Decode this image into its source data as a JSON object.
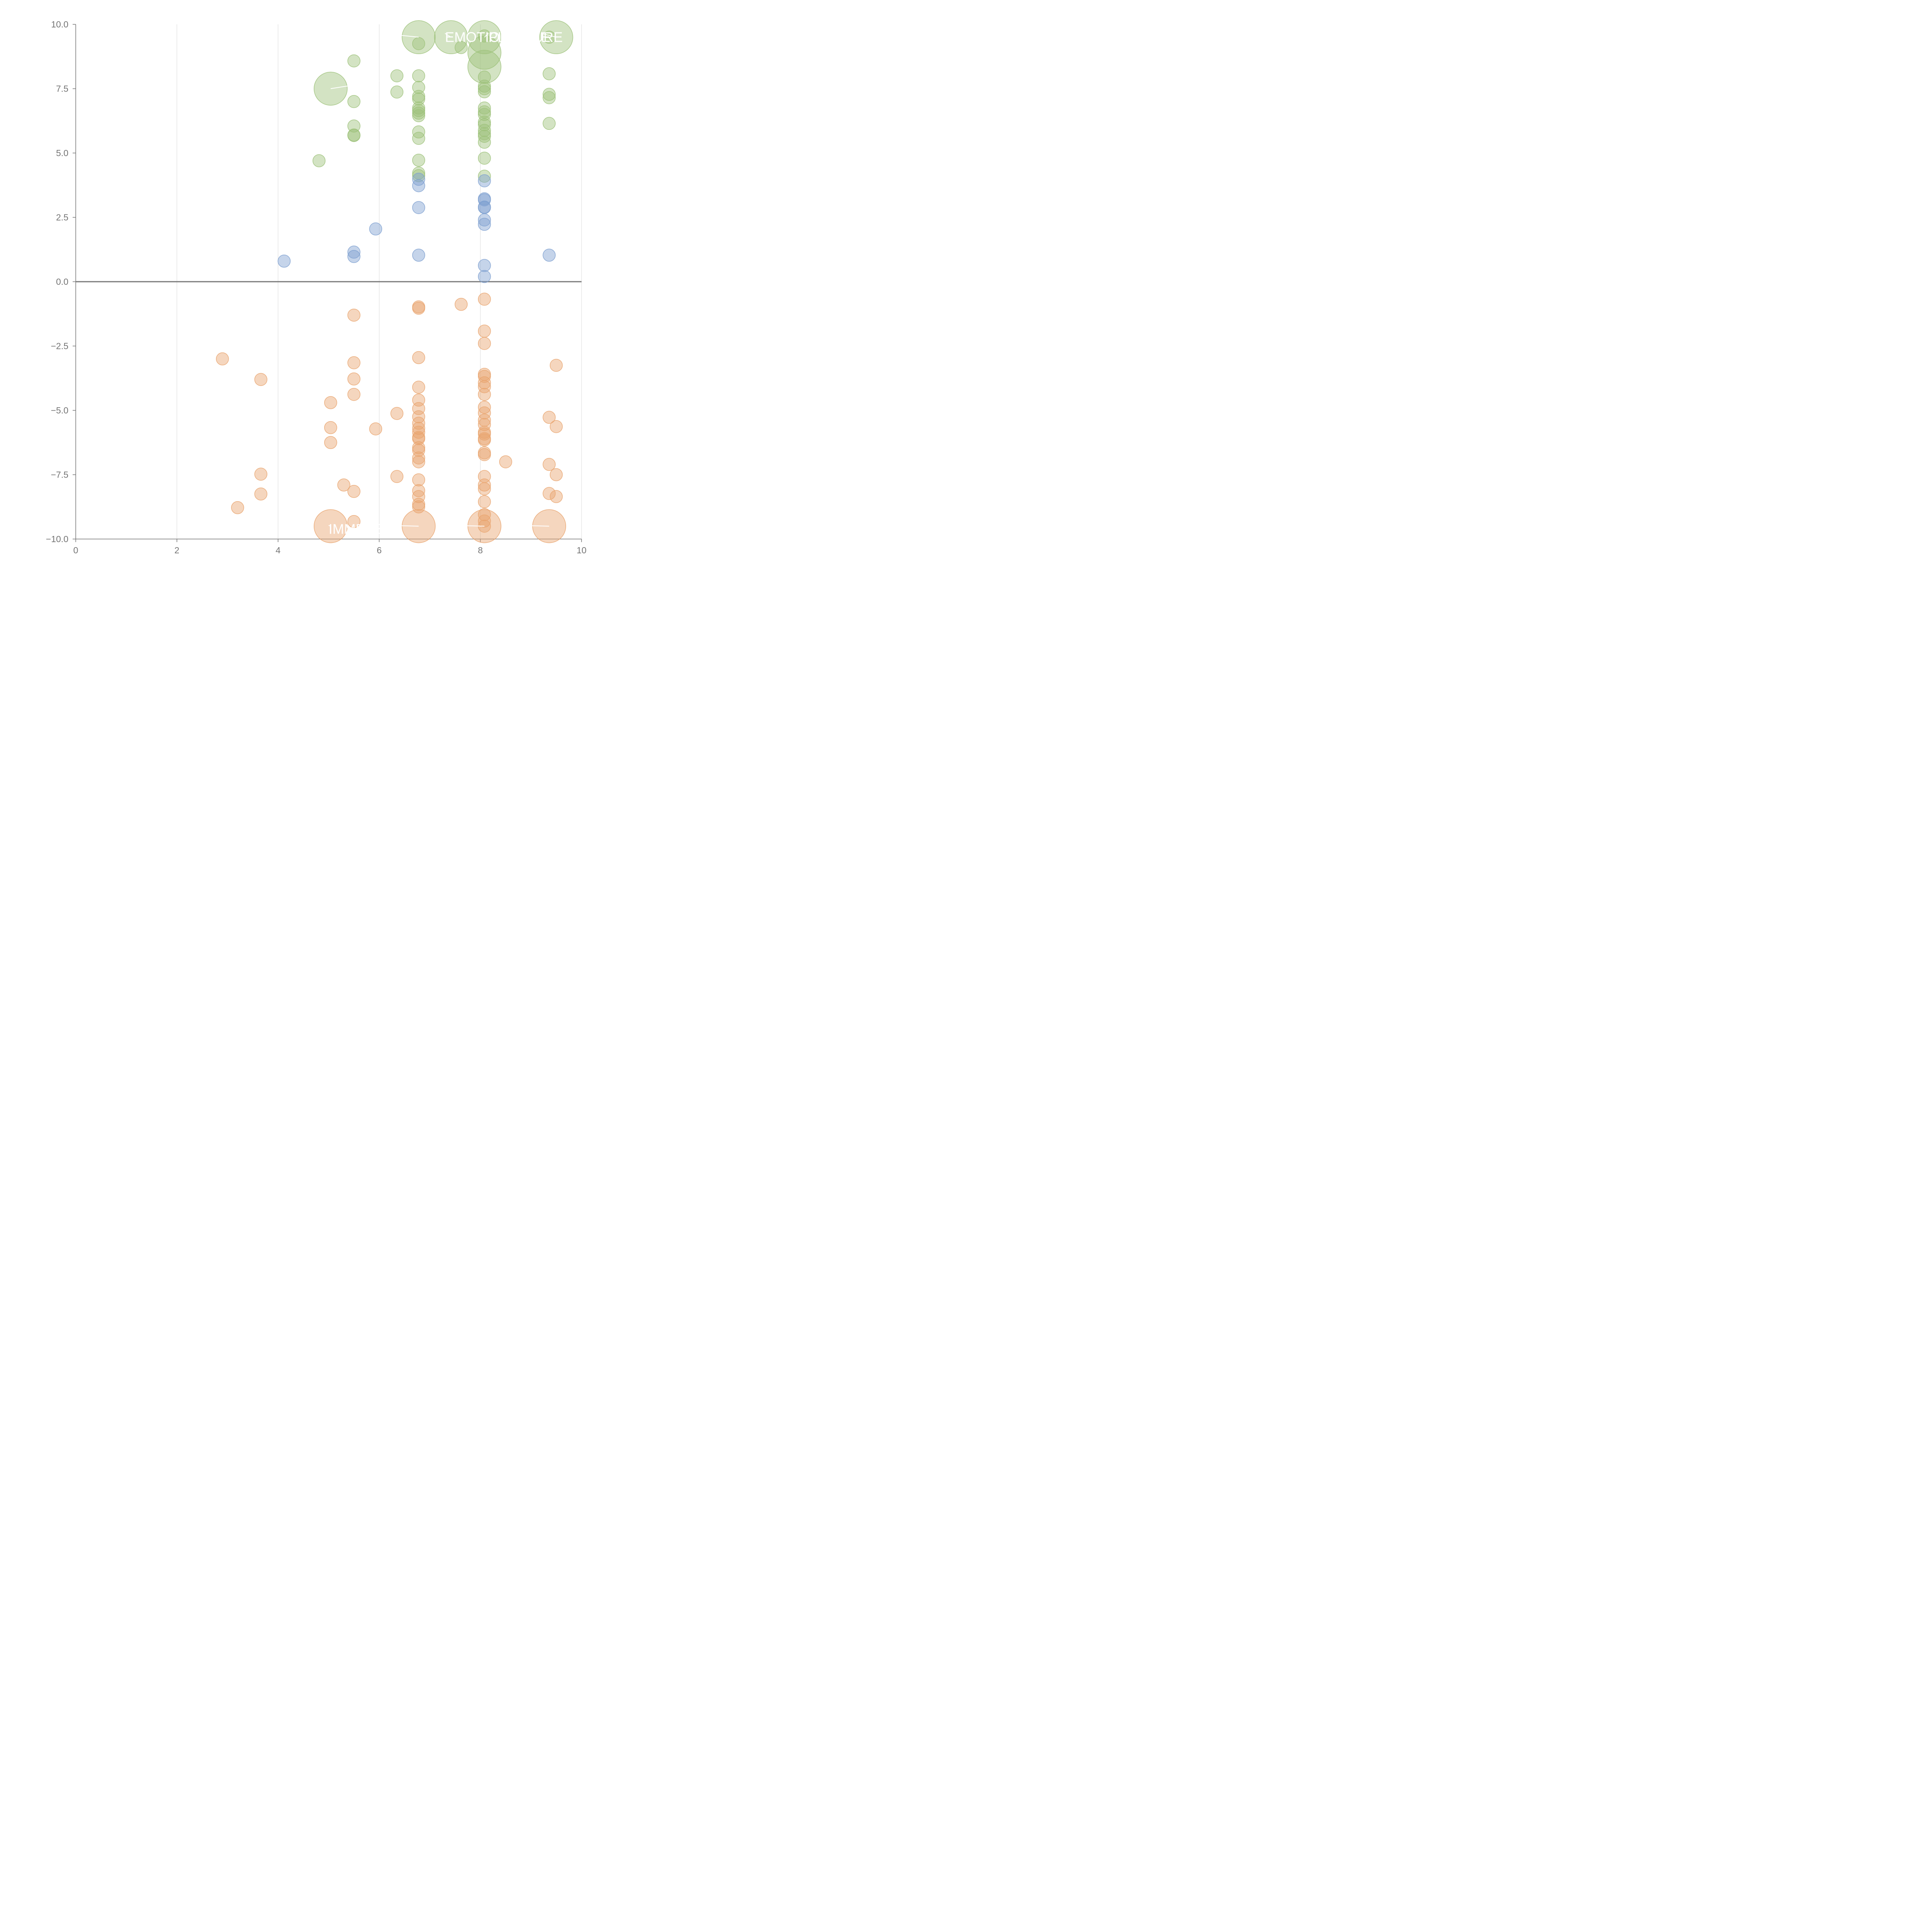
{
  "chart_data": {
    "type": "scatter",
    "title": "",
    "xlabel": "",
    "ylabel": "",
    "xlim": [
      0,
      10
    ],
    "ylim": [
      -10,
      10
    ],
    "x_ticks": [
      "0",
      "2",
      "4",
      "6",
      "8",
      "10"
    ],
    "y_ticks": [
      "−10.0",
      "−7.5",
      "−5.0",
      "−2.5",
      "0.0",
      "2.5",
      "5.0",
      "7.5",
      "10.0"
    ],
    "grid": "vertical",
    "zero_line": true,
    "colors": {
      "positive": "#9ec27a",
      "neutral": "#7ea0d0",
      "negative": "#e9a46e",
      "axis": "#757575",
      "grid": "#d9d9d9",
      "label": "#ffffff"
    },
    "series": [
      {
        "name": "positive",
        "color": "#9ec27a",
        "points": [
          [
            6.78,
            9.5,
            2
          ],
          [
            7.42,
            9.5,
            2
          ],
          [
            8.08,
            9.5,
            2
          ],
          [
            9.5,
            9.5,
            2
          ],
          [
            9.36,
            9.5,
            0
          ],
          [
            8.08,
            8.9,
            2
          ],
          [
            8.08,
            8.35,
            2
          ],
          [
            7.62,
            9.1,
            0
          ],
          [
            6.78,
            9.25,
            0
          ],
          [
            8.08,
            9.55,
            0
          ],
          [
            5.04,
            7.5,
            2
          ],
          [
            5.5,
            8.58,
            0
          ],
          [
            6.35,
            8.0,
            0
          ],
          [
            6.35,
            7.37,
            0
          ],
          [
            6.78,
            8.0,
            0
          ],
          [
            6.78,
            7.55,
            0
          ],
          [
            6.78,
            7.2,
            0
          ],
          [
            6.78,
            7.1,
            0
          ],
          [
            6.78,
            6.75,
            0
          ],
          [
            6.78,
            6.65,
            0
          ],
          [
            6.78,
            6.55,
            0
          ],
          [
            6.78,
            6.45,
            0
          ],
          [
            6.78,
            5.82,
            0
          ],
          [
            6.78,
            5.57,
            0
          ],
          [
            6.78,
            4.72,
            0
          ],
          [
            6.78,
            4.22,
            0
          ],
          [
            6.78,
            4.12,
            0
          ],
          [
            5.5,
            7.0,
            0
          ],
          [
            5.5,
            6.05,
            0
          ],
          [
            5.5,
            5.7,
            0
          ],
          [
            5.5,
            5.68,
            0
          ],
          [
            4.81,
            4.7,
            0
          ],
          [
            8.08,
            7.95,
            0
          ],
          [
            8.08,
            7.6,
            0
          ],
          [
            8.08,
            7.5,
            0
          ],
          [
            8.08,
            7.38,
            0
          ],
          [
            8.08,
            6.75,
            0
          ],
          [
            8.08,
            6.6,
            0
          ],
          [
            8.08,
            6.5,
            0
          ],
          [
            8.08,
            6.2,
            0
          ],
          [
            8.08,
            6.1,
            0
          ],
          [
            8.08,
            5.88,
            0
          ],
          [
            8.08,
            5.75,
            0
          ],
          [
            8.08,
            5.65,
            0
          ],
          [
            8.08,
            5.42,
            0
          ],
          [
            8.08,
            4.8,
            0
          ],
          [
            8.08,
            4.1,
            0
          ],
          [
            9.36,
            8.08,
            0
          ],
          [
            9.36,
            7.28,
            0
          ],
          [
            9.36,
            7.15,
            0
          ],
          [
            9.36,
            6.15,
            0
          ]
        ]
      },
      {
        "name": "neutral",
        "color": "#7ea0d0",
        "points": [
          [
            4.12,
            0.8,
            0
          ],
          [
            5.5,
            1.15,
            0
          ],
          [
            5.5,
            0.98,
            0
          ],
          [
            5.93,
            2.05,
            0
          ],
          [
            6.78,
            3.98,
            0
          ],
          [
            6.78,
            3.73,
            0
          ],
          [
            6.78,
            2.88,
            0
          ],
          [
            6.78,
            1.03,
            0
          ],
          [
            8.08,
            3.92,
            0
          ],
          [
            8.08,
            3.22,
            0
          ],
          [
            8.08,
            3.18,
            0
          ],
          [
            8.08,
            2.9,
            0
          ],
          [
            8.08,
            2.88,
            0
          ],
          [
            8.08,
            2.4,
            0
          ],
          [
            8.08,
            2.23,
            0
          ],
          [
            8.08,
            0.63,
            0
          ],
          [
            8.08,
            0.2,
            0
          ],
          [
            9.36,
            1.03,
            0
          ]
        ]
      },
      {
        "name": "negative",
        "color": "#e9a46e",
        "points": [
          [
            5.04,
            -9.5,
            2
          ],
          [
            6.78,
            -9.5,
            2
          ],
          [
            8.08,
            -9.5,
            2
          ],
          [
            9.36,
            -9.5,
            2
          ],
          [
            8.08,
            -9.5,
            0
          ],
          [
            8.08,
            -9.3,
            0
          ],
          [
            8.08,
            -9.05,
            0
          ],
          [
            2.9,
            -3.0,
            0
          ],
          [
            3.66,
            -3.8,
            0
          ],
          [
            3.66,
            -7.48,
            0
          ],
          [
            3.66,
            -8.25,
            0
          ],
          [
            3.2,
            -8.78,
            0
          ],
          [
            5.04,
            -4.7,
            0
          ],
          [
            5.04,
            -5.67,
            0
          ],
          [
            5.04,
            -6.25,
            0
          ],
          [
            5.3,
            -7.9,
            0
          ],
          [
            5.5,
            -1.3,
            0
          ],
          [
            5.5,
            -3.15,
            0
          ],
          [
            5.5,
            -3.78,
            0
          ],
          [
            5.5,
            -4.38,
            0
          ],
          [
            5.5,
            -8.15,
            0
          ],
          [
            5.5,
            -9.32,
            0
          ],
          [
            5.93,
            -5.72,
            0
          ],
          [
            6.35,
            -5.12,
            0
          ],
          [
            6.35,
            -7.57,
            0
          ],
          [
            6.78,
            -0.98,
            0
          ],
          [
            6.78,
            -1.03,
            0
          ],
          [
            6.78,
            -2.95,
            0
          ],
          [
            6.78,
            -4.1,
            0
          ],
          [
            6.78,
            -4.6,
            0
          ],
          [
            6.78,
            -4.93,
            0
          ],
          [
            6.78,
            -5.25,
            0
          ],
          [
            6.78,
            -5.5,
            0
          ],
          [
            6.78,
            -5.7,
            0
          ],
          [
            6.78,
            -5.85,
            0
          ],
          [
            6.78,
            -6.05,
            0
          ],
          [
            6.78,
            -6.1,
            0
          ],
          [
            6.78,
            -6.45,
            0
          ],
          [
            6.78,
            -6.55,
            0
          ],
          [
            6.78,
            -6.85,
            0
          ],
          [
            6.78,
            -7.0,
            0
          ],
          [
            6.78,
            -7.7,
            0
          ],
          [
            6.78,
            -8.12,
            0
          ],
          [
            6.78,
            -8.35,
            0
          ],
          [
            6.78,
            -8.65,
            0
          ],
          [
            6.78,
            -8.75,
            0
          ],
          [
            7.62,
            -0.88,
            0
          ],
          [
            8.08,
            -0.68,
            0
          ],
          [
            8.08,
            -1.92,
            0
          ],
          [
            8.08,
            -2.4,
            0
          ],
          [
            8.08,
            -3.6,
            0
          ],
          [
            8.08,
            -3.68,
            0
          ],
          [
            8.08,
            -3.93,
            0
          ],
          [
            8.08,
            -4.08,
            0
          ],
          [
            8.08,
            -4.38,
            0
          ],
          [
            8.08,
            -4.88,
            0
          ],
          [
            8.08,
            -5.1,
            0
          ],
          [
            8.08,
            -5.38,
            0
          ],
          [
            8.08,
            -5.55,
            0
          ],
          [
            8.08,
            -5.85,
            0
          ],
          [
            8.08,
            -5.92,
            0
          ],
          [
            8.08,
            -6.1,
            0
          ],
          [
            8.08,
            -6.15,
            0
          ],
          [
            8.08,
            -6.65,
            0
          ],
          [
            8.08,
            -6.72,
            0
          ],
          [
            8.08,
            -7.57,
            0
          ],
          [
            8.08,
            -7.9,
            0
          ],
          [
            8.08,
            -8.05,
            0
          ],
          [
            8.08,
            -8.55,
            0
          ],
          [
            8.5,
            -7.0,
            0
          ],
          [
            9.36,
            -5.27,
            0
          ],
          [
            9.36,
            -7.1,
            0
          ],
          [
            9.36,
            -8.23,
            0
          ],
          [
            9.5,
            -3.25,
            0
          ],
          [
            9.5,
            -5.63,
            0
          ],
          [
            9.5,
            -7.5,
            0
          ],
          [
            9.5,
            -8.35,
            0
          ]
        ]
      }
    ],
    "bubble_size_levels": [
      "small",
      "medium",
      "large"
    ],
    "annotations": [
      {
        "text": "D",
        "x": 6.05,
        "y": 9.5,
        "tx": 6.78,
        "ty": 9.5
      },
      {
        "text": "EMOTIONAL",
        "x": 7.3,
        "y": 9.5,
        "tx": 7.42,
        "ty": 9.5
      },
      {
        "text": "PLEASURE",
        "x": 8.16,
        "y": 9.5,
        "tx": 8.08,
        "ty": 9.5
      },
      {
        "text": "E",
        "x": 9.2,
        "y": 9.5,
        "tx": 9.5,
        "ty": 9.5
      },
      {
        "text": "S",
        "x": 6.0,
        "y": 7.65,
        "tx": 5.04,
        "ty": 7.5
      },
      {
        "text": "IMMENSE",
        "x": 5.0,
        "y": -9.62,
        "tx": 5.04,
        "ty": -9.5
      },
      {
        "text": "R",
        "x": 6.15,
        "y": -9.62,
        "tx": 6.78,
        "ty": -9.5
      },
      {
        "text": "B",
        "x": 7.45,
        "y": -9.62,
        "tx": 8.08,
        "ty": -9.5
      },
      {
        "text": "K",
        "x": 8.7,
        "y": -9.62,
        "tx": 9.36,
        "ty": -9.5
      }
    ]
  }
}
